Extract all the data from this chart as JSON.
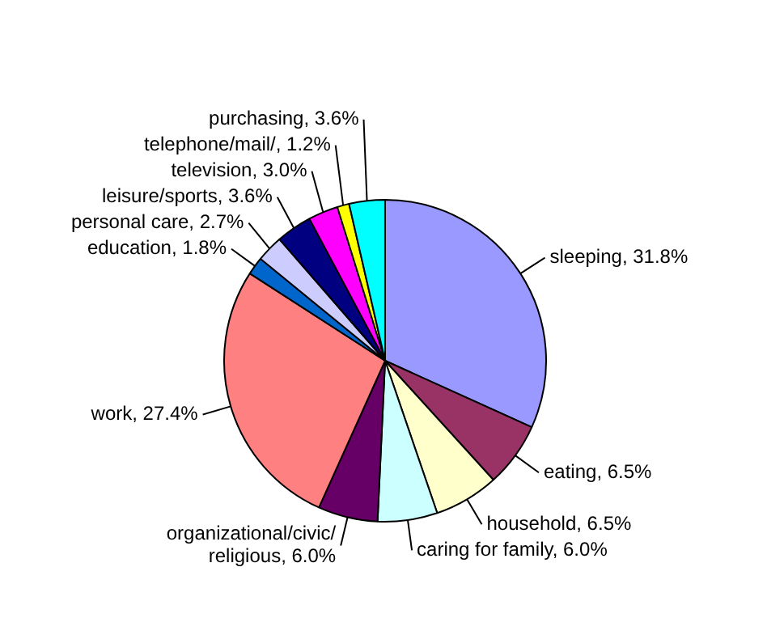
{
  "chart_data": {
    "type": "pie",
    "categories": [
      "sleeping",
      "eating",
      "household",
      "caring for family",
      "organizational/civic/religious",
      "work",
      "education",
      "personal care",
      "leisure/sports",
      "television",
      "telephone/mail/",
      "purchasing"
    ],
    "values": [
      31.8,
      6.5,
      6.5,
      6.0,
      6.0,
      27.4,
      1.8,
      2.7,
      3.6,
      3.0,
      1.2,
      3.6
    ],
    "value_labels": [
      "31.8%",
      "6.5%",
      "6.5%",
      "6.0%",
      "6.0%",
      "27.4%",
      "1.8%",
      "2.7%",
      "3.6%",
      "3.0%",
      "1.2%",
      "3.6%"
    ],
    "colors": [
      "#9999ff",
      "#993366",
      "#ffffcc",
      "#ccffff",
      "#660066",
      "#ff8080",
      "#0066cc",
      "#ccccff",
      "#000080",
      "#ff00ff",
      "#ffff00",
      "#00ffff"
    ],
    "legend": false
  }
}
